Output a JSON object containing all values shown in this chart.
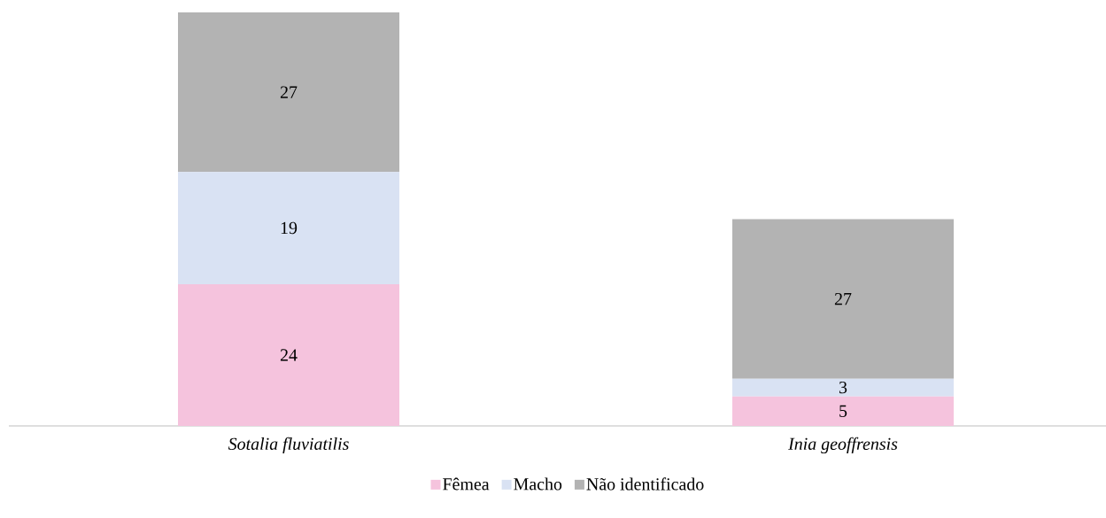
{
  "chart_data": {
    "type": "bar",
    "stacked": true,
    "categories": [
      "Sotalia fluviatilis",
      "Inia geoffrensis"
    ],
    "series": [
      {
        "name": "Fêmea",
        "color": "#f5c3dd",
        "values": [
          24,
          5
        ]
      },
      {
        "name": "Macho",
        "color": "#d9e2f3",
        "values": [
          19,
          3
        ]
      },
      {
        "name": "Não identificado",
        "color": "#b3b3b3",
        "values": [
          27,
          27
        ]
      }
    ],
    "data_labels": true,
    "legend": "bottom"
  }
}
